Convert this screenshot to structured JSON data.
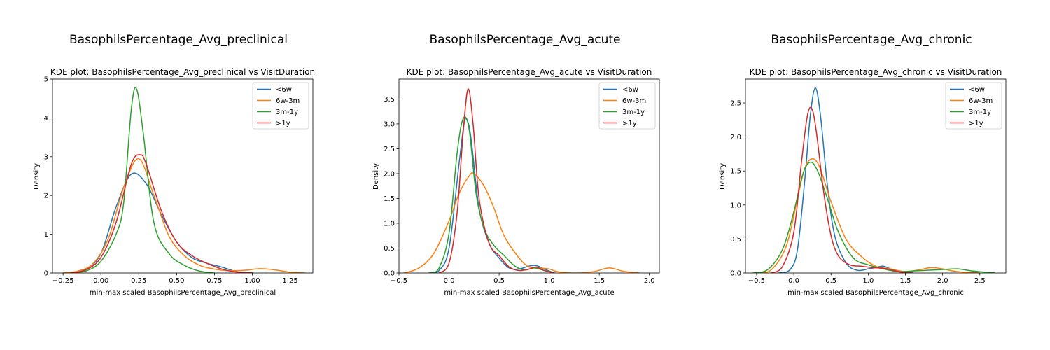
{
  "figure": {
    "background": "#ffffff"
  },
  "chart_data": [
    {
      "type": "line",
      "suptitle": "BasophilsPercentage_Avg_preclinical",
      "title": "KDE plot:  BasophilsPercentage_Avg_preclinical vs VisitDuration",
      "xlabel": "min-max scaled BasophilsPercentage_Avg_preclinical",
      "ylabel": "Density",
      "xlim": [
        -0.32,
        1.4
      ],
      "ylim": [
        0,
        5
      ],
      "xticks": [
        -0.25,
        0.0,
        0.25,
        0.5,
        0.75,
        1.0,
        1.25
      ],
      "xtick_labels": [
        "−0.25",
        "0.00",
        "0.25",
        "0.50",
        "0.75",
        "1.00",
        "1.25"
      ],
      "yticks": [
        0,
        1,
        2,
        3,
        4,
        5
      ],
      "ytick_labels": [
        "0",
        "1",
        "2",
        "3",
        "4",
        "5"
      ],
      "legend_position": "top-right",
      "series": [
        {
          "name": "<6w",
          "color": "#1f77b4",
          "x": [
            -0.2,
            -0.1,
            0.0,
            0.1,
            0.2,
            0.3,
            0.4,
            0.5,
            0.6,
            0.7,
            0.8,
            0.9,
            1.0
          ],
          "y": [
            0.0,
            0.1,
            0.5,
            1.7,
            2.55,
            2.3,
            1.5,
            0.8,
            0.4,
            0.25,
            0.15,
            0.03,
            0.0
          ]
        },
        {
          "name": "6w-3m",
          "color": "#ff7f0e",
          "x": [
            -0.25,
            -0.15,
            -0.05,
            0.05,
            0.15,
            0.25,
            0.35,
            0.45,
            0.55,
            0.65,
            0.75,
            0.85,
            0.95,
            1.05,
            1.15,
            1.25,
            1.35
          ],
          "y": [
            0.0,
            0.05,
            0.25,
            0.9,
            2.2,
            2.95,
            2.0,
            0.95,
            0.45,
            0.2,
            0.1,
            0.06,
            0.07,
            0.11,
            0.08,
            0.02,
            0.0
          ]
        },
        {
          "name": "3m-1y",
          "color": "#2ca02c",
          "x": [
            -0.2,
            -0.1,
            0.0,
            0.1,
            0.15,
            0.2,
            0.235,
            0.28,
            0.35,
            0.45,
            0.55,
            0.65,
            0.75
          ],
          "y": [
            0.0,
            0.05,
            0.3,
            1.0,
            1.8,
            4.2,
            4.75,
            3.6,
            1.3,
            0.5,
            0.2,
            0.05,
            0.0
          ]
        },
        {
          "name": ">1y",
          "color": "#d62728",
          "x": [
            -0.2,
            -0.1,
            0.0,
            0.1,
            0.2,
            0.26,
            0.3,
            0.4,
            0.5,
            0.6,
            0.7,
            0.8,
            0.9,
            1.0
          ],
          "y": [
            0.0,
            0.08,
            0.4,
            1.3,
            2.8,
            3.05,
            2.8,
            1.6,
            0.8,
            0.45,
            0.25,
            0.1,
            0.02,
            0.0
          ]
        }
      ]
    },
    {
      "type": "line",
      "suptitle": "BasophilsPercentage_Avg_acute",
      "title": "KDE plot:  BasophilsPercentage_Avg_acute vs VisitDuration",
      "xlabel": "min-max scaled BasophilsPercentage_Avg_acute",
      "ylabel": "Density",
      "xlim": [
        -0.5,
        2.1
      ],
      "ylim": [
        0,
        3.9
      ],
      "xticks": [
        -0.5,
        0.0,
        0.5,
        1.0,
        1.5,
        2.0
      ],
      "xtick_labels": [
        "−0.5",
        "0.0",
        "0.5",
        "1.0",
        "1.5",
        "2.0"
      ],
      "yticks": [
        0.0,
        0.5,
        1.0,
        1.5,
        2.0,
        2.5,
        3.0,
        3.5
      ],
      "ytick_labels": [
        "0.0",
        "0.5",
        "1.0",
        "1.5",
        "2.0",
        "2.5",
        "3.0",
        "3.5"
      ],
      "legend_position": "top-right",
      "series": [
        {
          "name": "<6w",
          "color": "#1f77b4",
          "x": [
            -0.2,
            -0.1,
            0.0,
            0.1,
            0.15,
            0.18,
            0.22,
            0.3,
            0.4,
            0.5,
            0.6,
            0.7,
            0.8,
            0.87,
            0.95,
            1.05
          ],
          "y": [
            0.0,
            0.05,
            0.5,
            2.2,
            3.0,
            3.08,
            2.7,
            1.3,
            0.6,
            0.3,
            0.1,
            0.08,
            0.14,
            0.15,
            0.08,
            0.0
          ]
        },
        {
          "name": "6w-3m",
          "color": "#ff7f0e",
          "x": [
            -0.45,
            -0.3,
            -0.15,
            0.0,
            0.1,
            0.2,
            0.25,
            0.35,
            0.45,
            0.55,
            0.7,
            0.8,
            0.9,
            1.0,
            1.1,
            1.3,
            1.45,
            1.6,
            1.75,
            1.9
          ],
          "y": [
            0.0,
            0.1,
            0.4,
            1.05,
            1.6,
            1.95,
            2.0,
            1.75,
            1.3,
            0.75,
            0.3,
            0.12,
            0.1,
            0.08,
            0.02,
            0.0,
            0.03,
            0.1,
            0.03,
            0.0
          ]
        },
        {
          "name": "3m-1y",
          "color": "#2ca02c",
          "x": [
            -0.2,
            -0.1,
            0.0,
            0.08,
            0.14,
            0.2,
            0.27,
            0.35,
            0.45,
            0.55,
            0.65,
            0.75,
            0.85,
            0.95,
            1.05
          ],
          "y": [
            0.0,
            0.1,
            0.8,
            2.4,
            3.1,
            2.9,
            1.6,
            0.9,
            0.55,
            0.35,
            0.15,
            0.06,
            0.1,
            0.05,
            0.0
          ]
        },
        {
          "name": ">1y",
          "color": "#d62728",
          "x": [
            -0.1,
            0.0,
            0.08,
            0.14,
            0.19,
            0.24,
            0.3,
            0.4,
            0.5,
            0.6,
            0.7,
            0.8,
            0.87,
            0.95,
            1.05
          ],
          "y": [
            0.0,
            0.2,
            1.2,
            2.8,
            3.7,
            3.0,
            1.5,
            0.6,
            0.35,
            0.12,
            0.05,
            0.08,
            0.12,
            0.05,
            0.0
          ]
        }
      ]
    },
    {
      "type": "line",
      "suptitle": "BasophilsPercentage_Avg_chronic",
      "title": "KDE plot:  BasophilsPercentage_Avg_chronic vs VisitDuration",
      "xlabel": "min-max scaled BasophilsPercentage_Avg_chronic",
      "ylabel": "Density",
      "xlim": [
        -0.65,
        2.85
      ],
      "ylim": [
        0,
        2.85
      ],
      "xticks": [
        -0.5,
        0.0,
        0.5,
        1.0,
        1.5,
        2.0,
        2.5
      ],
      "xtick_labels": [
        "−0.5",
        "0.0",
        "0.5",
        "1.0",
        "1.5",
        "2.0",
        "2.5"
      ],
      "yticks": [
        0.0,
        0.5,
        1.0,
        1.5,
        2.0,
        2.5
      ],
      "ytick_labels": [
        "0.0",
        "0.5",
        "1.0",
        "1.5",
        "2.0",
        "2.5"
      ],
      "legend_position": "top-right",
      "series": [
        {
          "name": "<6w",
          "color": "#1f77b4",
          "x": [
            -0.2,
            -0.05,
            0.05,
            0.15,
            0.22,
            0.29,
            0.36,
            0.45,
            0.55,
            0.7,
            0.85,
            1.0,
            1.1,
            1.2,
            1.3,
            1.45,
            1.6
          ],
          "y": [
            0.0,
            0.05,
            0.35,
            1.4,
            2.3,
            2.72,
            2.3,
            1.3,
            0.55,
            0.15,
            0.04,
            0.06,
            0.08,
            0.1,
            0.06,
            0.01,
            0.0
          ]
        },
        {
          "name": "6w-3m",
          "color": "#ff7f0e",
          "x": [
            -0.5,
            -0.3,
            -0.1,
            0.05,
            0.15,
            0.25,
            0.35,
            0.5,
            0.7,
            0.9,
            1.1,
            1.3,
            1.5,
            1.7,
            1.85,
            2.0,
            2.2,
            2.5
          ],
          "y": [
            0.0,
            0.05,
            0.4,
            1.1,
            1.55,
            1.68,
            1.55,
            1.05,
            0.5,
            0.25,
            0.1,
            0.06,
            0.02,
            0.05,
            0.08,
            0.06,
            0.02,
            0.0
          ]
        },
        {
          "name": "3m-1y",
          "color": "#2ca02c",
          "x": [
            -0.55,
            -0.35,
            -0.15,
            0.0,
            0.12,
            0.22,
            0.32,
            0.45,
            0.6,
            0.8,
            1.0,
            1.2,
            1.4,
            1.6,
            1.8,
            2.0,
            2.2,
            2.4,
            2.7
          ],
          "y": [
            0.0,
            0.05,
            0.35,
            0.9,
            1.45,
            1.63,
            1.5,
            1.1,
            0.6,
            0.22,
            0.12,
            0.06,
            0.02,
            0.03,
            0.04,
            0.05,
            0.06,
            0.03,
            0.0
          ]
        },
        {
          "name": ">1y",
          "color": "#d62728",
          "x": [
            -0.3,
            -0.15,
            0.0,
            0.1,
            0.18,
            0.24,
            0.3,
            0.4,
            0.5,
            0.6,
            0.75,
            0.9,
            1.05,
            1.2,
            1.3,
            1.45,
            1.6
          ],
          "y": [
            0.0,
            0.1,
            0.6,
            1.6,
            2.3,
            2.42,
            2.1,
            1.2,
            0.55,
            0.25,
            0.12,
            0.1,
            0.08,
            0.07,
            0.05,
            0.01,
            0.0
          ]
        }
      ]
    }
  ]
}
